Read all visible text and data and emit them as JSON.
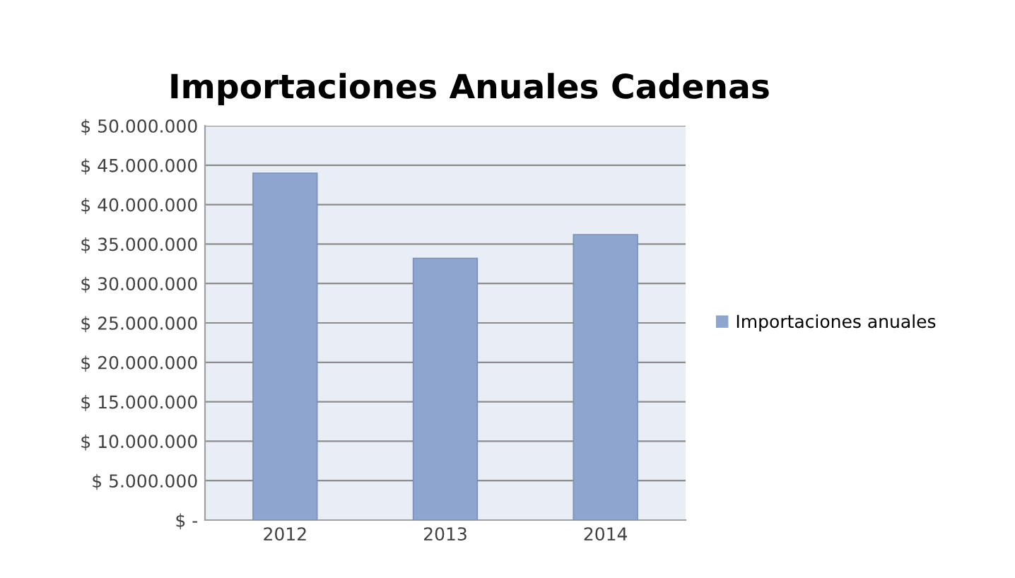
{
  "chart_data": {
    "type": "bar",
    "title": "Importaciones Anuales Cadenas",
    "categories": [
      "2012",
      "2013",
      "2014"
    ],
    "series": [
      {
        "name": "Importaciones anuales",
        "color": "#8ea5cf",
        "values": [
          44000000,
          33200000,
          36200000
        ]
      }
    ],
    "ylim": [
      0,
      50000000
    ],
    "yticks": [
      {
        "value": 0,
        "label": "$ -"
      },
      {
        "value": 5000000,
        "label": "$ 5.000.000"
      },
      {
        "value": 10000000,
        "label": "$ 10.000.000"
      },
      {
        "value": 15000000,
        "label": "$ 15.000.000"
      },
      {
        "value": 20000000,
        "label": "$ 20.000.000"
      },
      {
        "value": 25000000,
        "label": "$ 25.000.000"
      },
      {
        "value": 30000000,
        "label": "$ 30.000.000"
      },
      {
        "value": 35000000,
        "label": "$ 35.000.000"
      },
      {
        "value": 40000000,
        "label": "$ 40.000.000"
      },
      {
        "value": 45000000,
        "label": "$ 45.000.000"
      },
      {
        "value": 50000000,
        "label": "$ 50.000.000"
      }
    ],
    "grid": "y",
    "legend": "right"
  }
}
